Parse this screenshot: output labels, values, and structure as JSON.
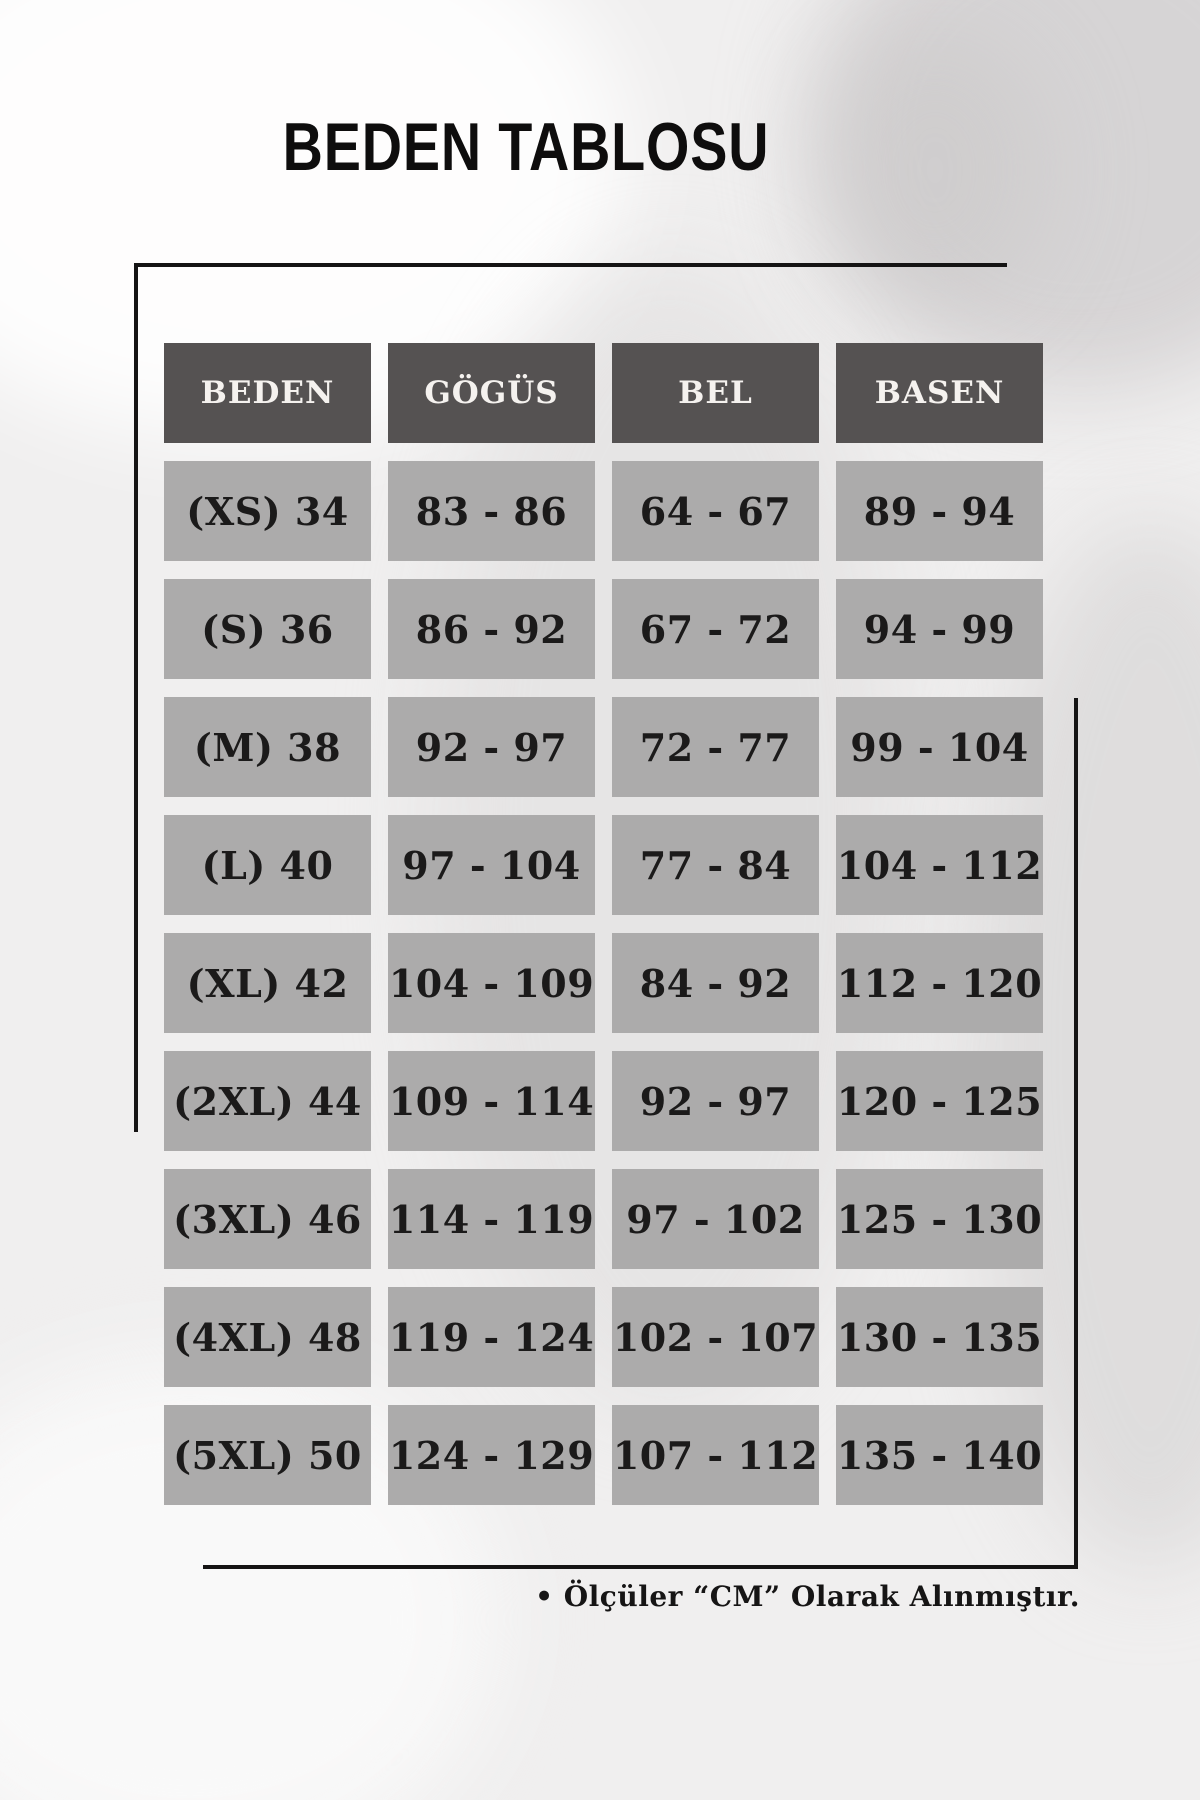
{
  "page": {
    "title": "BEDEN TABLOSU"
  },
  "chart_data": {
    "type": "table",
    "title": "BEDEN TABLOSU",
    "columns": [
      "BEDEN",
      "GÖGÜS",
      "BEL",
      "BASEN"
    ],
    "rows": [
      [
        "(XS) 34",
        "83 - 86",
        "64 - 67",
        "89 - 94"
      ],
      [
        "(S) 36",
        "86 - 92",
        "67 - 72",
        "94 - 99"
      ],
      [
        "(M) 38",
        "92 - 97",
        "72 - 77",
        "99 - 104"
      ],
      [
        "(L) 40",
        "97 - 104",
        "77 - 84",
        "104 - 112"
      ],
      [
        "(XL) 42",
        "104 - 109",
        "84 - 92",
        "112 - 120"
      ],
      [
        "(2XL) 44",
        "109 - 114",
        "92 - 97",
        "120 - 125"
      ],
      [
        "(3XL) 46",
        "114 - 119",
        "97 - 102",
        "125 - 130"
      ],
      [
        "(4XL) 48",
        "119 - 124",
        "102 - 107",
        "130 - 135"
      ],
      [
        "(5XL) 50",
        "124 - 129",
        "107 - 112",
        "135 - 140"
      ]
    ],
    "note": "• Ölçüler “CM” Olarak Alınmıştır.",
    "layout_hints": {
      "header_position": "top",
      "grid": "separated-cells"
    }
  },
  "colors": {
    "background": "#f0efef",
    "header_cell_bg": "#555252",
    "header_cell_text": "#f5f2ef",
    "data_cell_bg": "#acabab",
    "data_cell_text": "#1b1a1a",
    "frame_line": "#151414",
    "title_text": "#0e0d0d"
  }
}
